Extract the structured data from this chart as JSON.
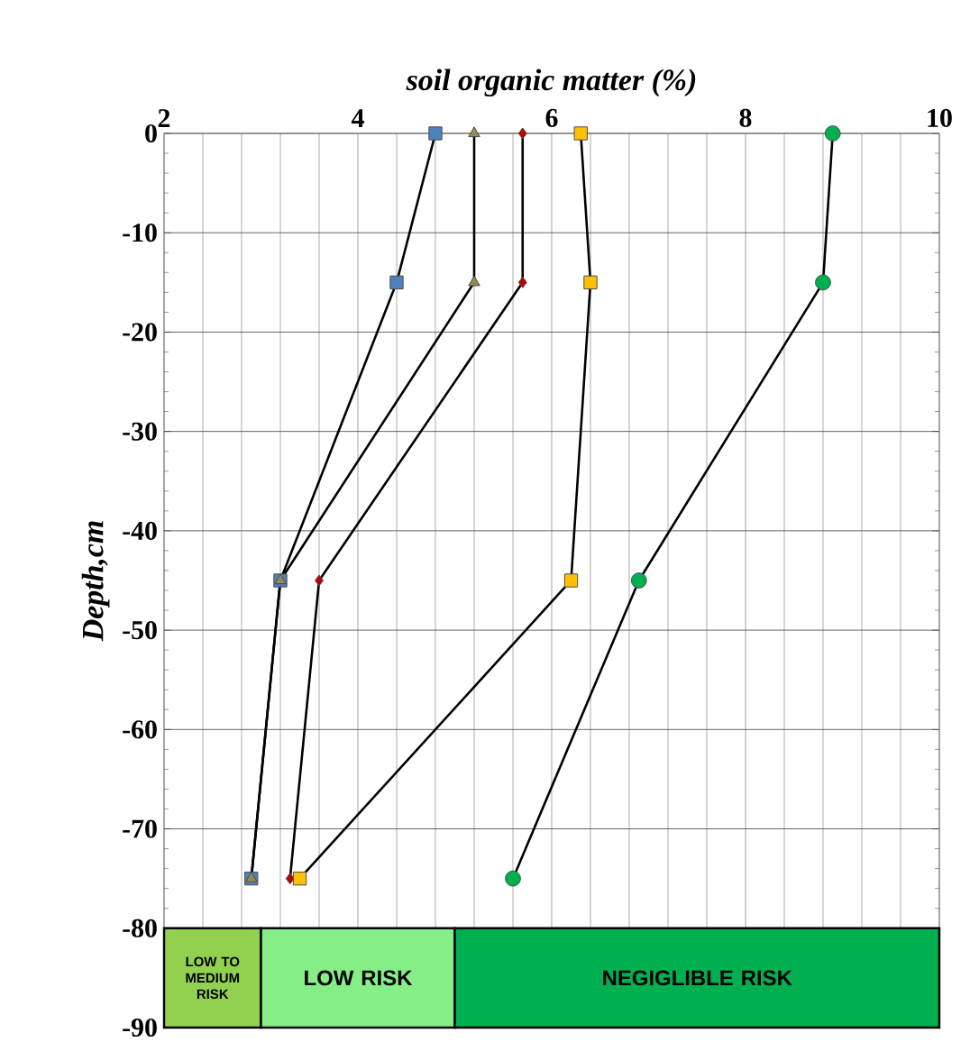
{
  "chart_data": {
    "type": "line",
    "xlabel": "soil organic matter (%)",
    "ylabel": "Depth,cm",
    "xlim": [
      2,
      10
    ],
    "xticks": [
      2,
      4,
      6,
      8,
      10
    ],
    "ylim": [
      -90,
      0
    ],
    "yticks": [
      0,
      -10,
      -20,
      -30,
      -40,
      -50,
      -60,
      -70,
      -80,
      -90
    ],
    "grid": true,
    "series": [
      {
        "color": "#4f81bd",
        "marker": "square",
        "x": [
          4.8,
          4.4,
          3.2,
          2.9
        ],
        "values": [
          0,
          -15,
          -45,
          -75
        ]
      },
      {
        "color": "#948a54",
        "marker": "triangle",
        "x": [
          5.2,
          5.2,
          3.2,
          2.9
        ],
        "values": [
          0,
          -15,
          -45,
          -75
        ]
      },
      {
        "color": "#c00000",
        "marker": "diamond",
        "x": [
          5.7,
          5.7,
          3.6,
          3.3
        ],
        "values": [
          0,
          -15,
          -45,
          -75
        ]
      },
      {
        "color": "#ffc000",
        "marker": "square",
        "x": [
          6.3,
          6.4,
          6.2,
          3.4
        ],
        "values": [
          0,
          -15,
          -45,
          -75
        ]
      },
      {
        "color": "#00b050",
        "marker": "circle",
        "x": [
          8.9,
          8.8,
          6.9,
          5.6
        ],
        "values": [
          0,
          -15,
          -45,
          -75
        ]
      }
    ],
    "bands": [
      {
        "axis": "x",
        "from": 2,
        "to": 3,
        "label": "LOW TO MEDIUM RISK",
        "color": "#92d050"
      },
      {
        "axis": "x",
        "from": 3,
        "to": 5,
        "label": "LOW RISK",
        "color": "#86ee86"
      },
      {
        "axis": "x",
        "from": 5,
        "to": 10,
        "label": "NEGIGLIBLE RISK",
        "color": "#00b050"
      }
    ]
  }
}
